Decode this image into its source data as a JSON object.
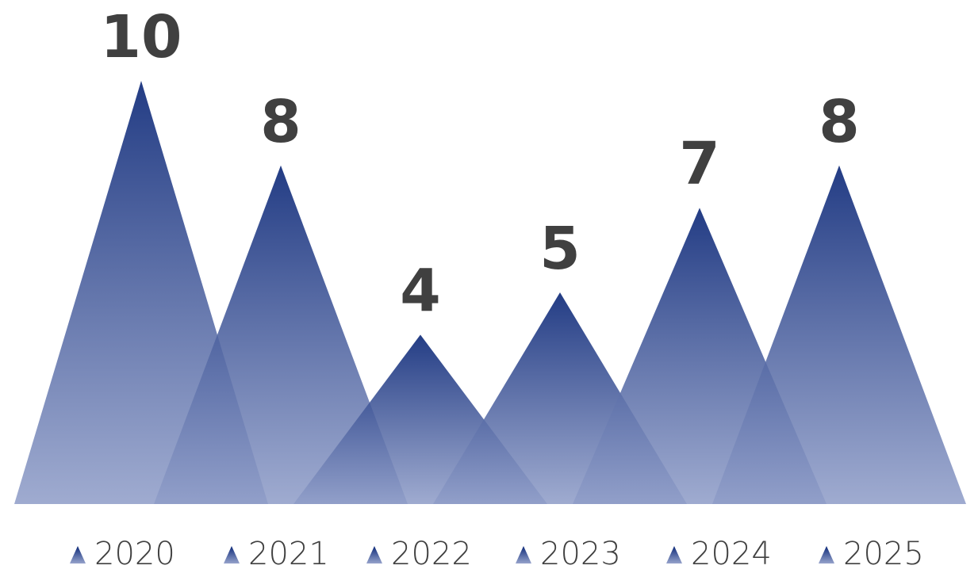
{
  "chart_data": {
    "type": "bar",
    "categories": [
      "2020",
      "2021",
      "2022",
      "2023",
      "2024",
      "2025"
    ],
    "values": [
      10,
      8,
      4,
      5,
      7,
      8
    ],
    "title": "",
    "xlabel": "",
    "ylabel": "",
    "grid": false,
    "legend_position": "bottom"
  },
  "colors": {
    "peak_top": "#0b2777",
    "peak_bottom": "#8f9dc8",
    "label_text": "#404040"
  }
}
